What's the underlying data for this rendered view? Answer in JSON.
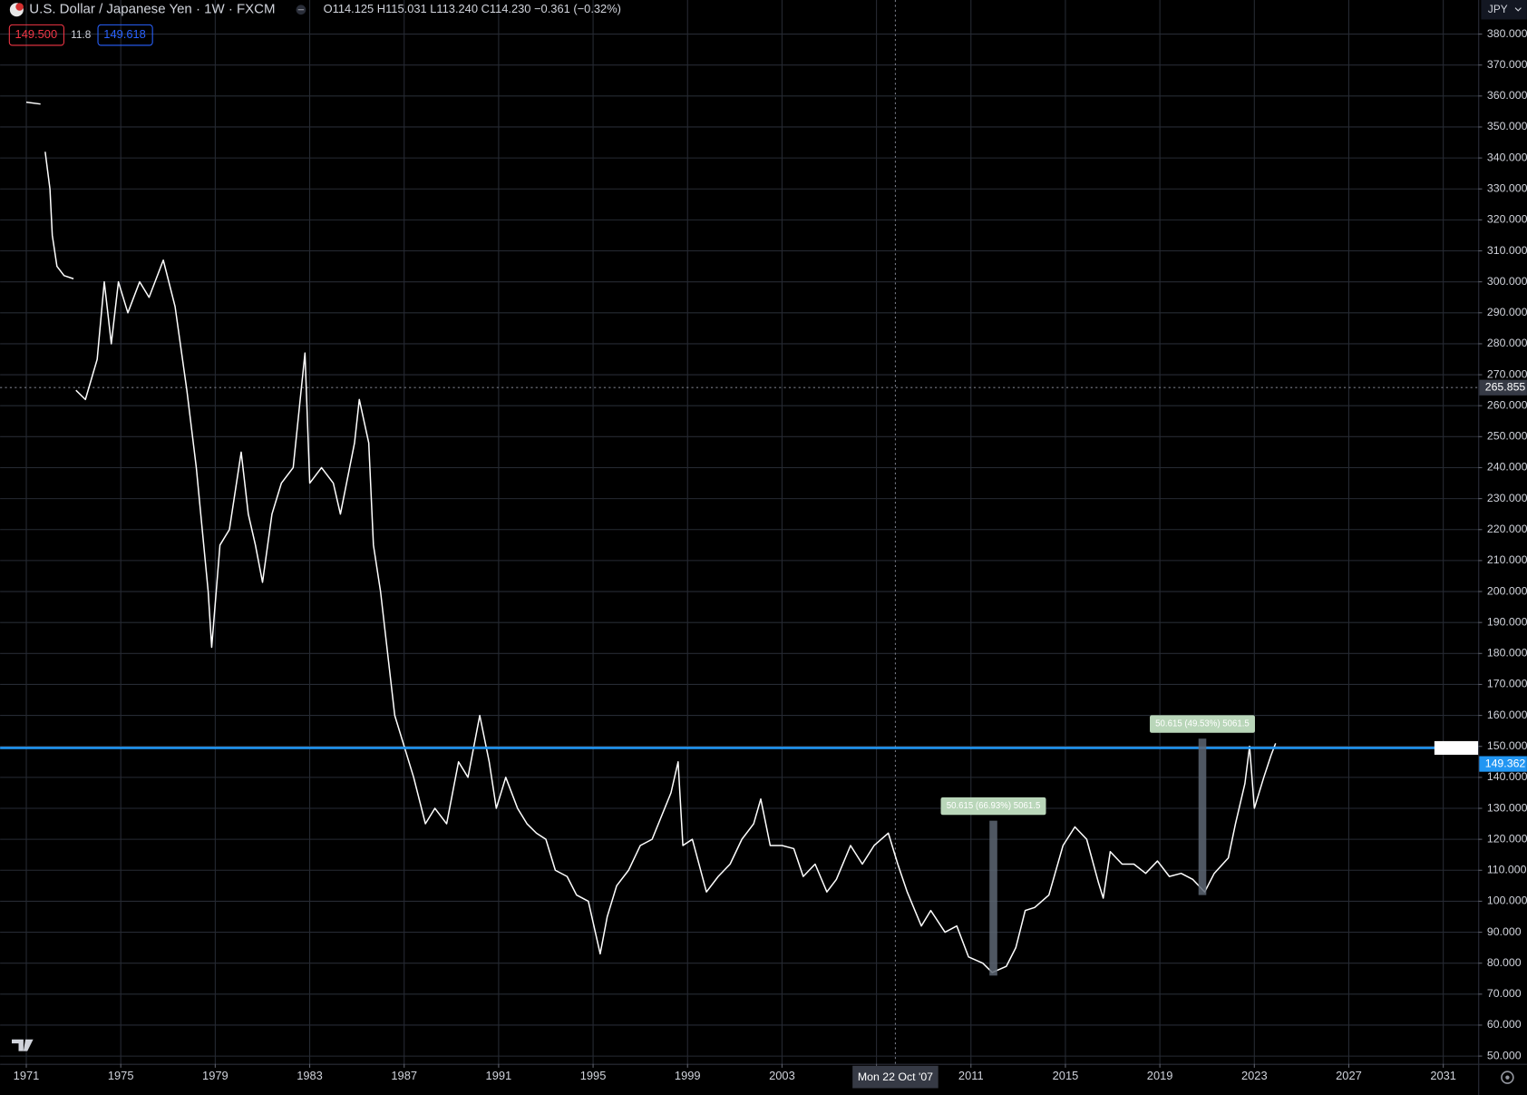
{
  "chart_data": {
    "type": "line",
    "title": "U.S. Dollar / Japanese Yen · 1W · FXCM",
    "ohlc": "O114.125 H115.031 L113.240 C114.230 −0.361 (−0.32%)",
    "sell_price": "149.500",
    "spread": "11.8",
    "buy_price": "149.618",
    "currency": "JPY",
    "series": [
      {
        "name": "USDJPY",
        "color": "#ffffff",
        "x": [
          1971.0,
          1971.6,
          1971.7,
          1971.8,
          1972.0,
          1972.1,
          1972.3,
          1972.6,
          1973.0,
          1973.05,
          1973.1,
          1973.5,
          1974.0,
          1974.3,
          1974.6,
          1974.9,
          1975.3,
          1975.8,
          1976.2,
          1976.8,
          1977.3,
          1977.8,
          1978.2,
          1978.7,
          1978.85,
          1979.2,
          1979.6,
          1980.1,
          1980.4,
          1980.7,
          1981.0,
          1981.4,
          1981.8,
          1982.3,
          1982.8,
          1983.0,
          1983.5,
          1984.0,
          1984.3,
          1984.9,
          1985.1,
          1985.5,
          1985.7,
          1986.0,
          1986.3,
          1986.6,
          1987.0,
          1987.4,
          1987.9,
          1988.3,
          1988.8,
          1989.3,
          1989.7,
          1990.2,
          1990.6,
          1990.9,
          1991.3,
          1991.8,
          1992.2,
          1992.6,
          1993.0,
          1993.4,
          1993.9,
          1994.3,
          1994.8,
          1995.3,
          1995.6,
          1996.0,
          1996.5,
          1997.0,
          1997.5,
          1998.3,
          1998.6,
          1998.8,
          1999.2,
          1999.8,
          2000.3,
          2000.8,
          2001.3,
          2001.8,
          2002.1,
          2002.5,
          2003.0,
          2003.5,
          2003.9,
          2004.4,
          2004.9,
          2005.3,
          2005.9,
          2006.4,
          2006.9,
          2007.5,
          2007.9,
          2008.3,
          2008.9,
          2009.3,
          2009.9,
          2010.4,
          2010.9,
          2011.5,
          2011.9,
          2012.5,
          2012.9,
          2013.3,
          2013.7,
          2014.3,
          2014.9,
          2015.4,
          2015.9,
          2016.4,
          2016.6,
          2016.9,
          2017.4,
          2017.9,
          2018.4,
          2018.9,
          2019.4,
          2019.9,
          2020.4,
          2020.9,
          2021.3,
          2021.9,
          2022.2,
          2022.6,
          2022.8,
          2023.0,
          2023.4,
          2023.7,
          2023.9
        ],
        "values": [
          358,
          357.4,
          null,
          342,
          330,
          315,
          305,
          302,
          301,
          null,
          265,
          262,
          275,
          300,
          280,
          300,
          290,
          300,
          295,
          307,
          292,
          265,
          240,
          200,
          182,
          215,
          220,
          245,
          225,
          215,
          203,
          225,
          235,
          240,
          277,
          235,
          240,
          235,
          225,
          248,
          262,
          248,
          215,
          200,
          180,
          160,
          150,
          140,
          125,
          130,
          125,
          145,
          140,
          160,
          145,
          130,
          140,
          130,
          125,
          122,
          120,
          110,
          108,
          102,
          100,
          83,
          95,
          105,
          110,
          118,
          120,
          135,
          145,
          118,
          120,
          103,
          108,
          112,
          120,
          125,
          133,
          118,
          118,
          117,
          108,
          112,
          103,
          107,
          118,
          112,
          118,
          122,
          112,
          103,
          92,
          97,
          90,
          92,
          82,
          80,
          77,
          79,
          85,
          97,
          98,
          102,
          118,
          124,
          120,
          106,
          101,
          116,
          112,
          112,
          109,
          113,
          108,
          109,
          107,
          103,
          109,
          114,
          125,
          138,
          150,
          130,
          140,
          147,
          151
        ]
      }
    ],
    "xlim": [
      1969.89,
      2032.48
    ],
    "ylim": [
      47.5,
      391
    ],
    "xticks": [
      1971,
      1975,
      1979,
      1983,
      1987,
      1991,
      1995,
      1999,
      2003,
      2007,
      2011,
      2015,
      2019,
      2023,
      2027,
      2031
    ],
    "yticks": [
      {
        "value": 50,
        "label": "50.000"
      },
      {
        "value": 60,
        "label": "60.000"
      },
      {
        "value": 70,
        "label": "70.000"
      },
      {
        "value": 80,
        "label": "80.000"
      },
      {
        "value": 90,
        "label": "90.000"
      },
      {
        "value": 100,
        "label": "100.000"
      },
      {
        "value": 110,
        "label": "110.000"
      },
      {
        "value": 120,
        "label": "120.000"
      },
      {
        "value": 130,
        "label": "130.000"
      },
      {
        "value": 140,
        "label": "140.000"
      },
      {
        "value": 150,
        "label": "150.000"
      },
      {
        "value": 160,
        "label": "160.000"
      },
      {
        "value": 170,
        "label": "170.000"
      },
      {
        "value": 180,
        "label": "180.000"
      },
      {
        "value": 190,
        "label": "190.000"
      },
      {
        "value": 200,
        "label": "200.000"
      },
      {
        "value": 210,
        "label": "210.000"
      },
      {
        "value": 220,
        "label": "220.000"
      },
      {
        "value": 230,
        "label": "230.000"
      },
      {
        "value": 240,
        "label": "240.000"
      },
      {
        "value": 250,
        "label": "250.000"
      },
      {
        "value": 260,
        "label": "260.000"
      },
      {
        "value": 270,
        "label": "270.000"
      },
      {
        "value": 280,
        "label": "280.000"
      },
      {
        "value": 290,
        "label": "290.000"
      },
      {
        "value": 300,
        "label": "300.000"
      },
      {
        "value": 310,
        "label": "310.000"
      },
      {
        "value": 320,
        "label": "320.000"
      },
      {
        "value": 330,
        "label": "330.000"
      },
      {
        "value": 340,
        "label": "340.000"
      },
      {
        "value": 350,
        "label": "350.000"
      },
      {
        "value": 360,
        "label": "360.000"
      },
      {
        "value": 370,
        "label": "370.000"
      },
      {
        "value": 380,
        "label": "380.000"
      }
    ],
    "grid": true,
    "hline": {
      "value": 149.5,
      "color": "#2196f3"
    },
    "last_price": {
      "value": 149.362,
      "label": "149.362"
    },
    "crosshair": {
      "x": 2007.8,
      "x_label": "Mon 22 Oct '07",
      "y": 265.855,
      "y_label": "265.855"
    },
    "measures": [
      {
        "x": 2011.95,
        "from": 76,
        "to": 126,
        "label": "50.615 (66.93%) 5061.5"
      },
      {
        "x": 2020.8,
        "from": 102,
        "to": 152.5,
        "label": "50.615 (49.53%) 5061.5"
      }
    ]
  }
}
